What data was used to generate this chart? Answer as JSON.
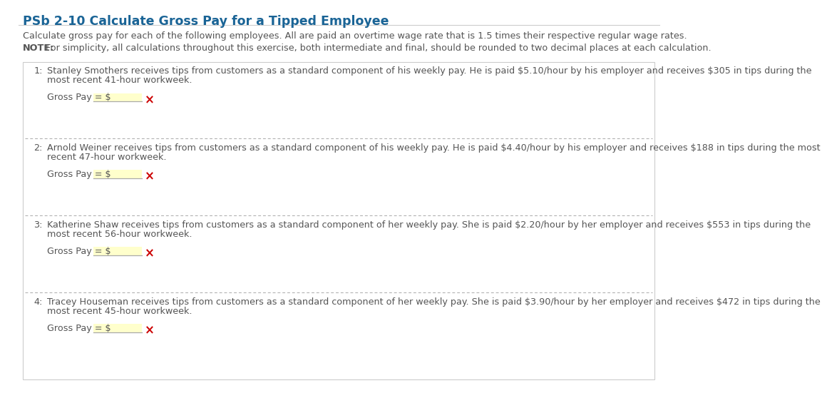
{
  "title": "PSb 2-10 Calculate Gross Pay for a Tipped Employee",
  "title_color": "#1a6496",
  "bg_color": "#ffffff",
  "intro_line1": "Calculate gross pay for each of the following employees. All are paid an overtime wage rate that is 1.5 times their respective regular wage rates.",
  "intro_note_bold": "NOTE:",
  "intro_note_rest": " For simplicity, all calculations throughout this exercise, both intermediate and final, should be rounded to two decimal places at each calculation.",
  "box_bg": "#ffffff",
  "box_border": "#cccccc",
  "separator_color": "#aaaaaa",
  "text_color": "#555555",
  "number_color": "#555555",
  "input_bg": "#ffffcc",
  "input_underline": "#aaaaaa",
  "x_color": "#cc0000",
  "problems": [
    {
      "num": "1:",
      "line1": "Stanley Smothers receives tips from customers as a standard component of his weekly pay. He is paid $5.10/hour by his employer and receives $305 in tips during the",
      "line2": "most recent 41-hour workweek."
    },
    {
      "num": "2:",
      "line1": "Arnold Weiner receives tips from customers as a standard component of his weekly pay. He is paid $4.40/hour by his employer and receives $188 in tips during the most",
      "line2": "recent 47-hour workweek."
    },
    {
      "num": "3:",
      "line1": "Katherine Shaw receives tips from customers as a standard component of her weekly pay. She is paid $2.20/hour by her employer and receives $553 in tips during the",
      "line2": "most recent 56-hour workweek."
    },
    {
      "num": "4:",
      "line1": "Tracey Houseman receives tips from customers as a standard component of her weekly pay. She is paid $3.90/hour by her employer and receives $472 in tips during the",
      "line2": "most recent 45-hour workweek."
    }
  ]
}
